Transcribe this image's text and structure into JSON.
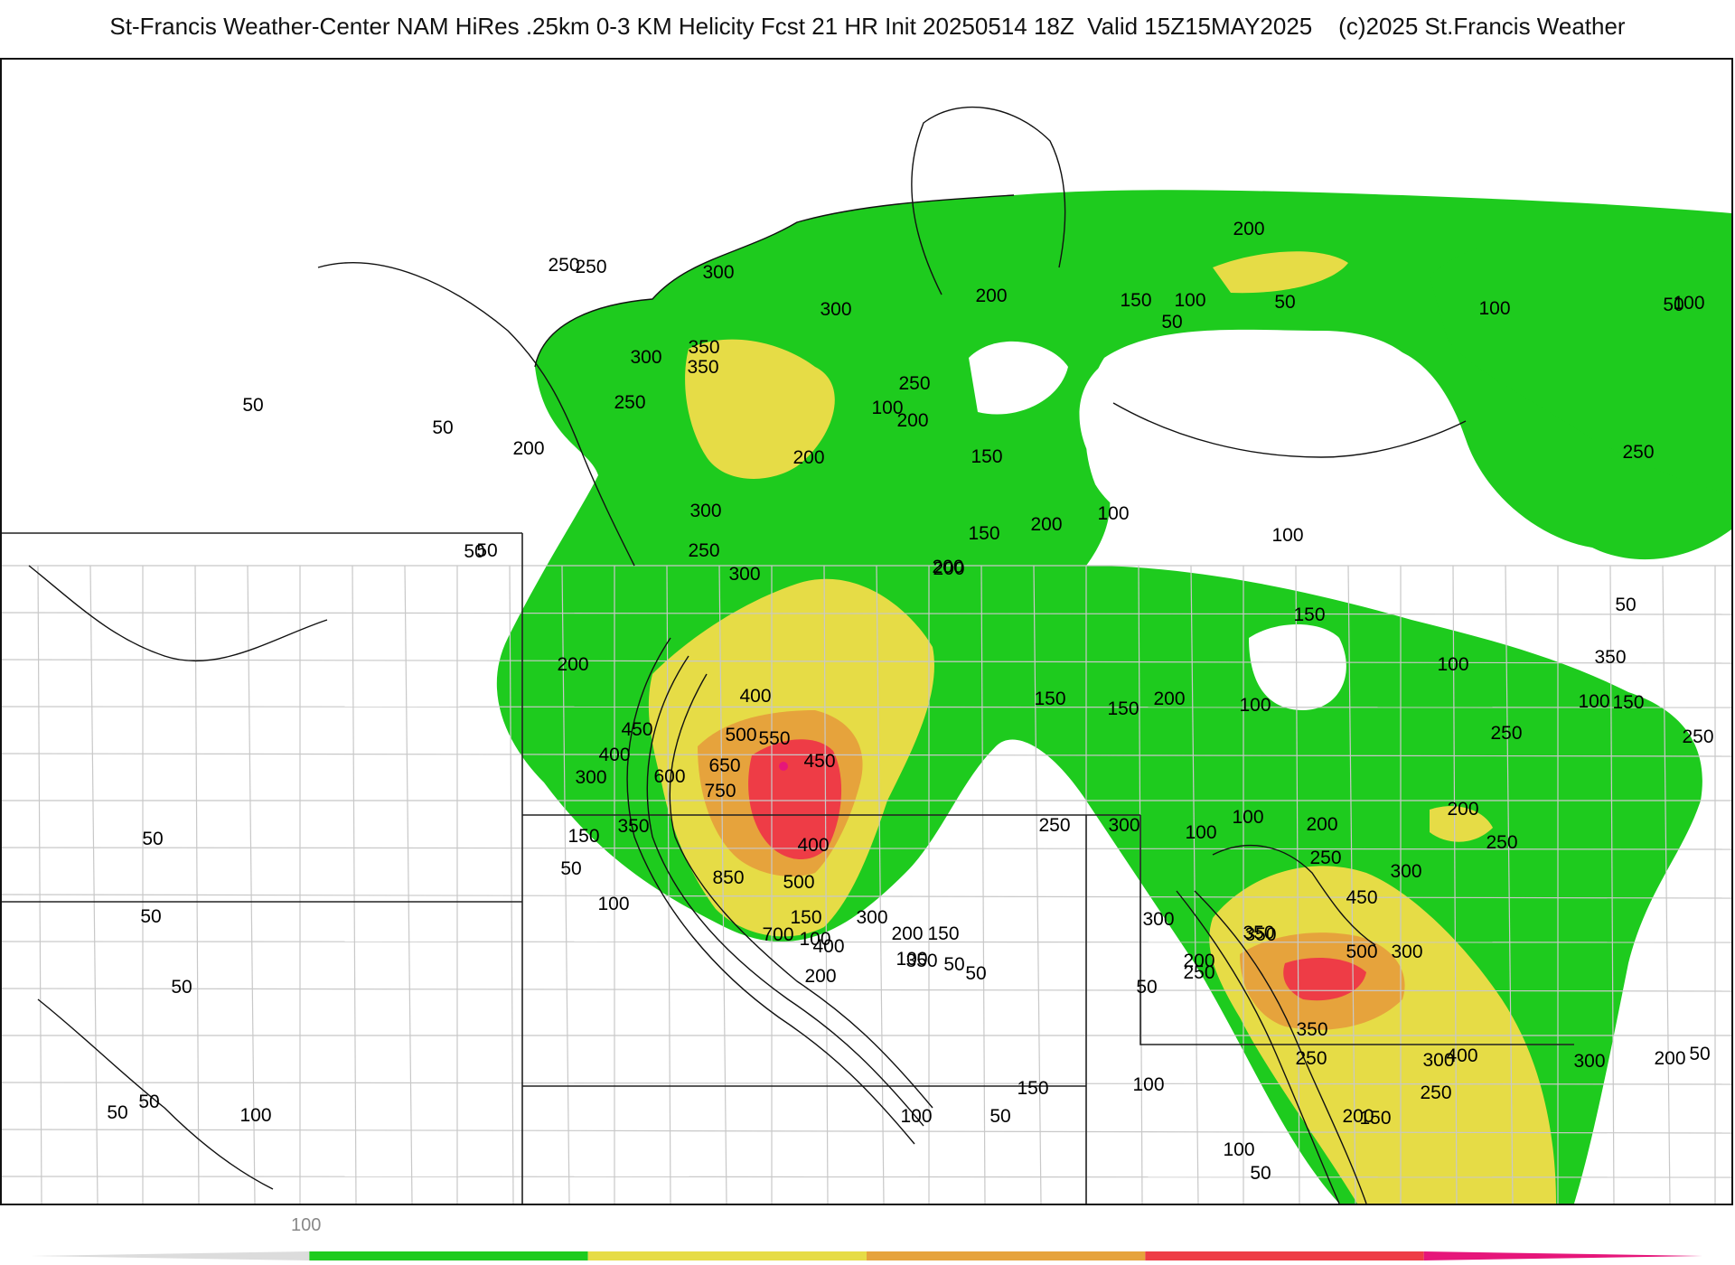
{
  "title": "St-Francis Weather-Center NAM HiRes .25km 0-3 KM Helicity Fcst 21 HR Init 20250514 18Z  Valid 15Z15MAY2025    (c)2025 St.Francis Weather",
  "colors": {
    "background": "#ffffff",
    "border": "#111111",
    "boundary": "#c8c8c8",
    "green": "#1ecb1e",
    "yellow": "#e6dc46",
    "orange": "#e6a33c",
    "red": "#ee3c46",
    "magenta": "#e6167a"
  },
  "legend": {
    "tick_label": "100",
    "bands": [
      "none",
      "green",
      "yellow",
      "orange",
      "red",
      "magenta"
    ]
  },
  "contour_labels": [
    "250",
    "300",
    "350",
    "300",
    "350",
    "300",
    "250",
    "200",
    "200",
    "150",
    "100",
    "50",
    "100",
    "50",
    "200",
    "150",
    "100",
    "50",
    "100",
    "250",
    "250",
    "200",
    "200",
    "150",
    "200",
    "300",
    "200",
    "100",
    "100",
    "100",
    "100",
    "50",
    "250",
    "250",
    "50",
    "300",
    "200",
    "200",
    "150",
    "150",
    "200",
    "100",
    "150",
    "350",
    "250",
    "400",
    "500",
    "550",
    "450",
    "400",
    "650",
    "750",
    "600",
    "450",
    "400",
    "300",
    "350",
    "150",
    "50",
    "100",
    "150",
    "100",
    "50",
    "250",
    "850",
    "700",
    "500",
    "400",
    "300",
    "200",
    "350",
    "50",
    "200",
    "100",
    "150",
    "100",
    "300",
    "100",
    "200",
    "250",
    "200",
    "250",
    "300",
    "450",
    "500",
    "300",
    "350",
    "300",
    "250",
    "350",
    "350",
    "200",
    "50",
    "250",
    "200",
    "300",
    "300",
    "50",
    "400",
    "250",
    "150",
    "100",
    "50",
    "100",
    "150",
    "50",
    "100",
    "50",
    "50",
    "50",
    "50",
    "50",
    "50",
    "50",
    "50",
    "100",
    "150",
    "200",
    "250"
  ]
}
